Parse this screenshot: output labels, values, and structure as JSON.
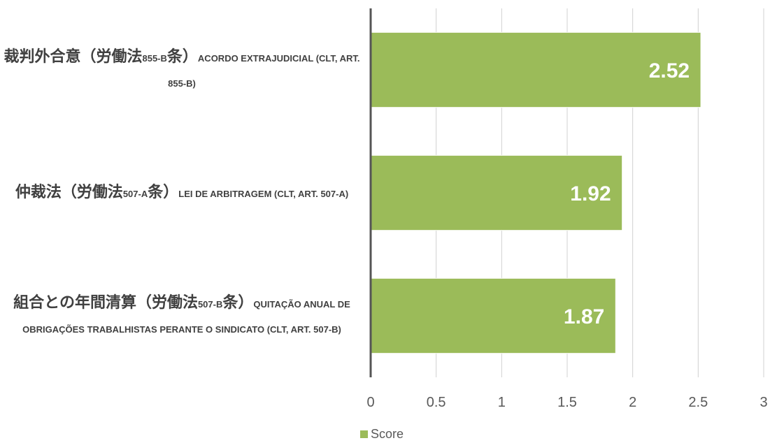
{
  "chart_data": {
    "type": "bar",
    "orientation": "horizontal",
    "categories": [
      "裁判外合意（労働法855-B条）ACORDO EXTRAJUDICIAL (CLT, ART. 855-B)",
      "仲裁法（労働法507-A条）LEI DE ARBITRAGEM (CLT, ART. 507-A)",
      "組合との年間清算（労働法507-B条）QUITAÇÃO ANUAL DE OBRIGAÇÕES TRABALHISTAS PERANTE O SINDICATO (CLT, ART. 507-B)"
    ],
    "series": [
      {
        "name": "Score",
        "color": "#9bbb59",
        "values": [
          2.52,
          1.92,
          1.87
        ]
      }
    ],
    "xlim": [
      0,
      3
    ],
    "xticks": [
      0,
      0.5,
      1,
      1.5,
      2,
      2.5,
      3
    ],
    "grid": true,
    "legend": "bottom"
  }
}
